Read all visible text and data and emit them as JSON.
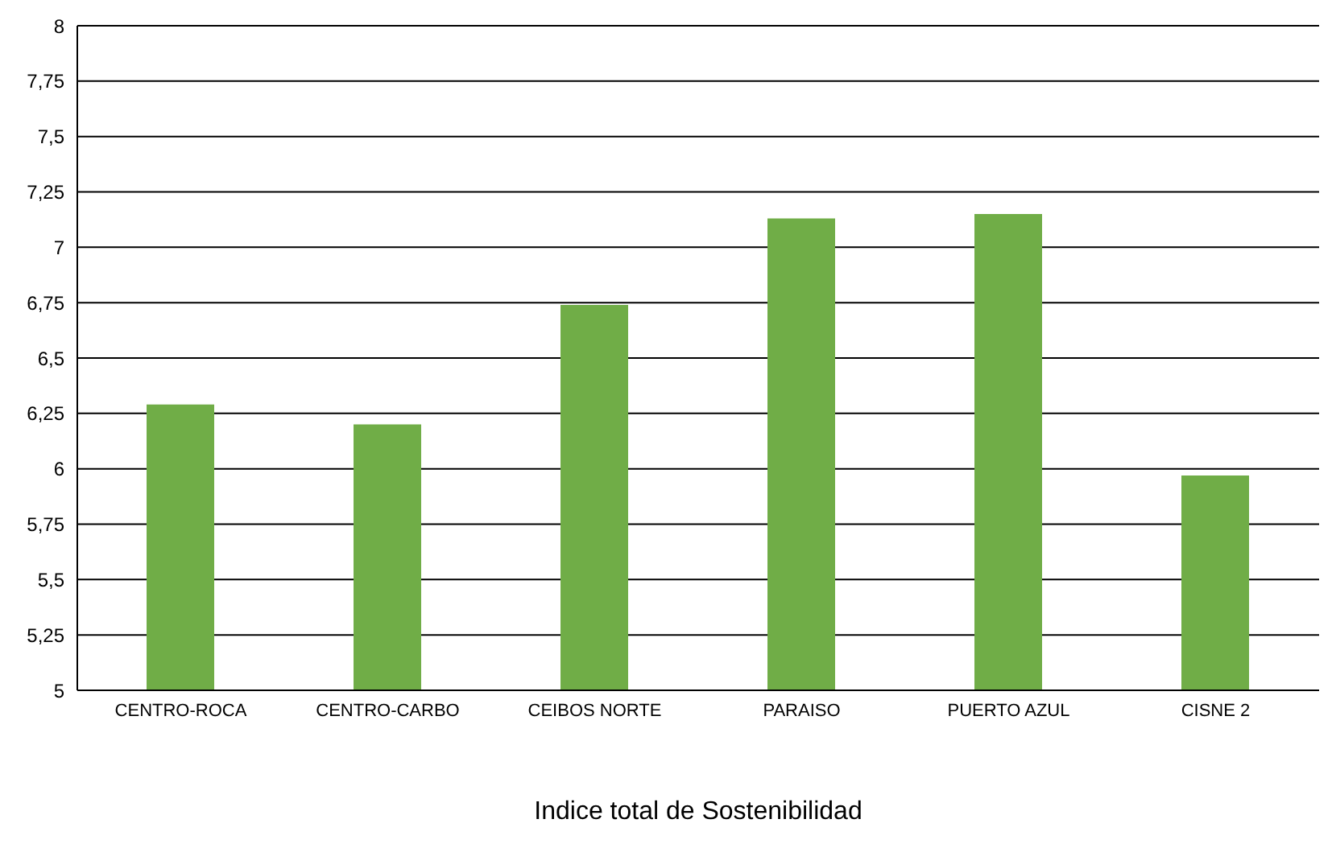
{
  "chart_data": {
    "type": "bar",
    "xlabel": "Indice total de Sostenibilidad",
    "categories": [
      "CENTRO-ROCA",
      "CENTRO-CARBO",
      "CEIBOS NORTE",
      "PARAISO",
      "PUERTO AZUL",
      "CISNE 2"
    ],
    "values": [
      6.29,
      6.2,
      6.74,
      7.13,
      7.15,
      5.97
    ],
    "color": "#70ad47",
    "ylim": [
      5,
      8
    ],
    "yticks": [
      5,
      {
        "value": 5.25,
        "label": "5,25"
      },
      {
        "value": 5.5,
        "label": "5,5"
      },
      {
        "value": 5.75,
        "label": "5,75"
      },
      6,
      {
        "value": 6.25,
        "label": "6,25"
      },
      {
        "value": 6.5,
        "label": "6,5"
      },
      {
        "value": 6.75,
        "label": "6,75"
      },
      7,
      {
        "value": 7.25,
        "label": "7,25"
      },
      {
        "value": 7.5,
        "label": "7,5"
      },
      {
        "value": 7.75,
        "label": "7,75"
      },
      8
    ],
    "grid": "y"
  }
}
